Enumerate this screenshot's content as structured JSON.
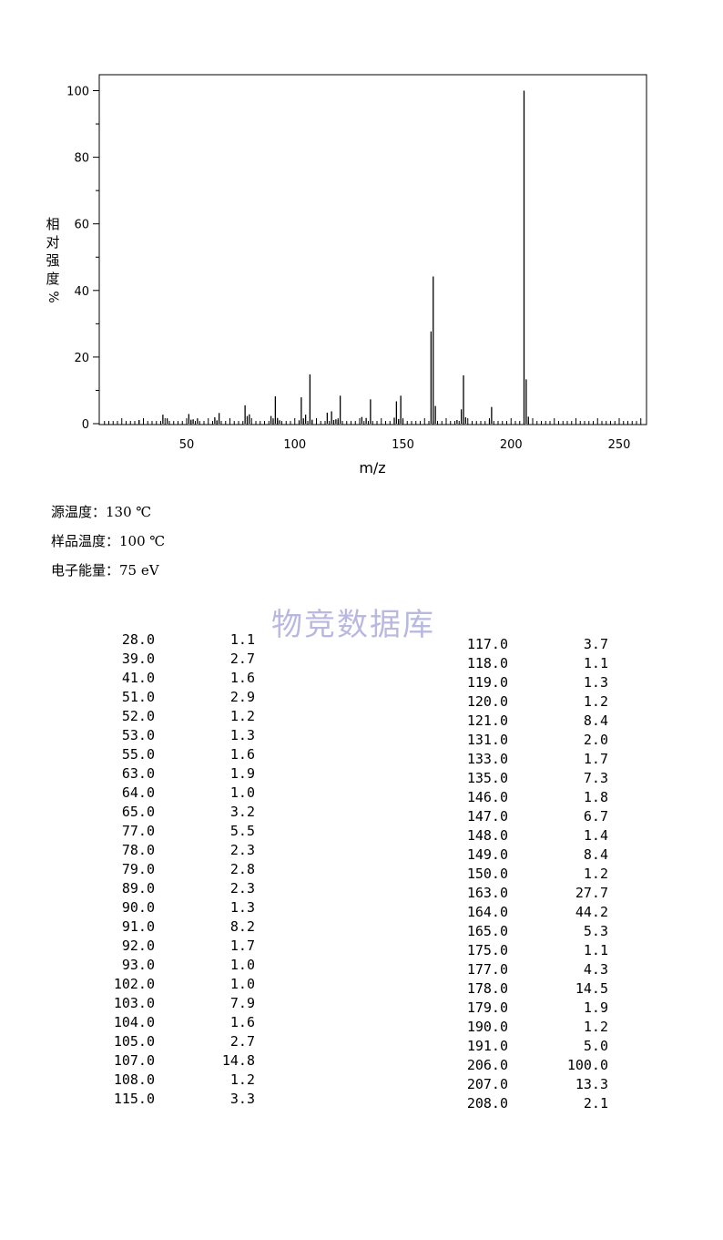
{
  "chart_data": {
    "type": "bar",
    "title": "",
    "xlabel": "m/z",
    "ylabel": "相对强度",
    "ylabel_unit": "%",
    "xlim": [
      10,
      262
    ],
    "ylim": [
      0,
      105
    ],
    "xticks": [
      50,
      100,
      150,
      200,
      250
    ],
    "yticks": [
      0,
      20,
      40,
      60,
      80,
      100
    ],
    "grid": false,
    "x": [
      28.0,
      39.0,
      41.0,
      51.0,
      52.0,
      53.0,
      55.0,
      63.0,
      64.0,
      65.0,
      77.0,
      78.0,
      79.0,
      89.0,
      90.0,
      91.0,
      92.0,
      93.0,
      102.0,
      103.0,
      104.0,
      105.0,
      107.0,
      108.0,
      115.0,
      117.0,
      118.0,
      119.0,
      120.0,
      121.0,
      131.0,
      133.0,
      135.0,
      146.0,
      147.0,
      148.0,
      149.0,
      150.0,
      163.0,
      164.0,
      165.0,
      175.0,
      177.0,
      178.0,
      179.0,
      190.0,
      191.0,
      206.0,
      207.0,
      208.0
    ],
    "values": [
      1.1,
      2.7,
      1.6,
      2.9,
      1.2,
      1.3,
      1.6,
      1.9,
      1.0,
      3.2,
      5.5,
      2.3,
      2.8,
      2.3,
      1.3,
      8.2,
      1.7,
      1.0,
      1.0,
      7.9,
      1.6,
      2.7,
      14.8,
      1.2,
      3.3,
      3.7,
      1.1,
      1.3,
      1.2,
      8.4,
      2.0,
      1.7,
      7.3,
      1.8,
      6.7,
      1.4,
      8.4,
      1.2,
      27.7,
      44.2,
      5.3,
      1.1,
      4.3,
      14.5,
      1.9,
      1.2,
      5.0,
      100.0,
      13.3,
      2.1
    ]
  },
  "conditions": {
    "source_temp": "源温度：130 ℃",
    "sample_temp": "样品温度：100 ℃",
    "electron_energy": "电子能量：75 eV"
  },
  "watermark": "物竞数据库",
  "ylabel_chars": [
    "相",
    "对",
    "强",
    "度"
  ],
  "ylabel_unit": "%",
  "table_left": [
    [
      "28.0",
      "1.1"
    ],
    [
      "39.0",
      "2.7"
    ],
    [
      "41.0",
      "1.6"
    ],
    [
      "51.0",
      "2.9"
    ],
    [
      "52.0",
      "1.2"
    ],
    [
      "53.0",
      "1.3"
    ],
    [
      "55.0",
      "1.6"
    ],
    [
      "63.0",
      "1.9"
    ],
    [
      "64.0",
      "1.0"
    ],
    [
      "65.0",
      "3.2"
    ],
    [
      "77.0",
      "5.5"
    ],
    [
      "78.0",
      "2.3"
    ],
    [
      "79.0",
      "2.8"
    ],
    [
      "89.0",
      "2.3"
    ],
    [
      "90.0",
      "1.3"
    ],
    [
      "91.0",
      "8.2"
    ],
    [
      "92.0",
      "1.7"
    ],
    [
      "93.0",
      "1.0"
    ],
    [
      "102.0",
      "1.0"
    ],
    [
      "103.0",
      "7.9"
    ],
    [
      "104.0",
      "1.6"
    ],
    [
      "105.0",
      "2.7"
    ],
    [
      "107.0",
      "14.8"
    ],
    [
      "108.0",
      "1.2"
    ],
    [
      "115.0",
      "3.3"
    ]
  ],
  "table_right": [
    [
      "117.0",
      "3.7"
    ],
    [
      "118.0",
      "1.1"
    ],
    [
      "119.0",
      "1.3"
    ],
    [
      "120.0",
      "1.2"
    ],
    [
      "121.0",
      "8.4"
    ],
    [
      "131.0",
      "2.0"
    ],
    [
      "133.0",
      "1.7"
    ],
    [
      "135.0",
      "7.3"
    ],
    [
      "146.0",
      "1.8"
    ],
    [
      "147.0",
      "6.7"
    ],
    [
      "148.0",
      "1.4"
    ],
    [
      "149.0",
      "8.4"
    ],
    [
      "150.0",
      "1.2"
    ],
    [
      "163.0",
      "27.7"
    ],
    [
      "164.0",
      "44.2"
    ],
    [
      "165.0",
      "5.3"
    ],
    [
      "175.0",
      "1.1"
    ],
    [
      "177.0",
      "4.3"
    ],
    [
      "178.0",
      "14.5"
    ],
    [
      "179.0",
      "1.9"
    ],
    [
      "190.0",
      "1.2"
    ],
    [
      "191.0",
      "5.0"
    ],
    [
      "206.0",
      "100.0"
    ],
    [
      "207.0",
      "13.3"
    ],
    [
      "208.0",
      "2.1"
    ]
  ]
}
